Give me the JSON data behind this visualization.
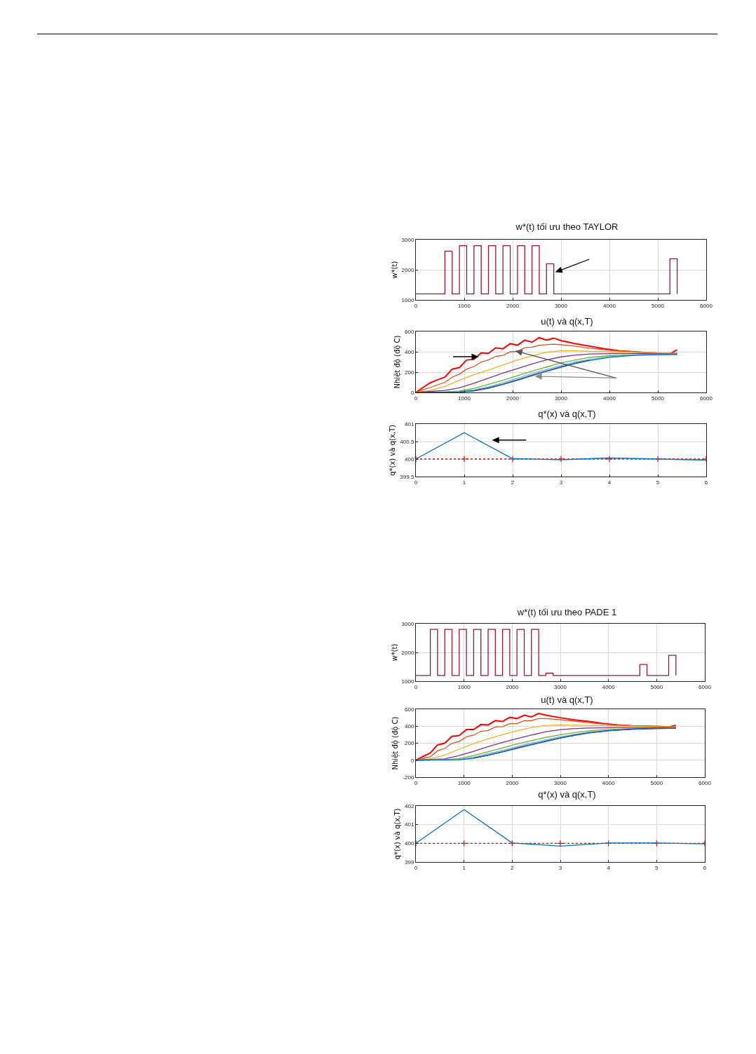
{
  "chart_data": [
    {
      "type": "step",
      "title": "w*(t) tối ưu theo TAYLOR",
      "ylabel": "w*(t)",
      "xlim": [
        0,
        6000
      ],
      "xticks": [
        0,
        1000,
        2000,
        3000,
        4000,
        5000,
        6000
      ],
      "ylim": [
        1000,
        3000
      ],
      "yticks": [
        1000,
        2000,
        3000
      ],
      "grid": true,
      "series": [
        {
          "color": "#a2142f",
          "x": [
            0,
            600,
            750,
            900,
            1050,
            1200,
            1350,
            1500,
            1650,
            1800,
            1950,
            2100,
            2250,
            2400,
            2550,
            2700,
            2850,
            5250,
            5400
          ],
          "values": [
            1200,
            2620,
            1200,
            2800,
            1200,
            2800,
            1200,
            2800,
            1200,
            2800,
            1200,
            2800,
            1200,
            2800,
            1200,
            2200,
            1200,
            2370,
            1200
          ]
        }
      ]
    },
    {
      "type": "line",
      "title": "u(t) và q(x,T)",
      "ylabel": "Nhiệt độ (độ C)",
      "xlim": [
        0,
        6000
      ],
      "xticks": [
        0,
        1000,
        2000,
        3000,
        4000,
        5000,
        6000
      ],
      "ylim": [
        0,
        600
      ],
      "yticks": [
        0,
        200,
        400,
        600
      ],
      "grid": true,
      "series": [
        {
          "color": "#ff0000",
          "x": [
            0,
            150,
            300,
            450,
            600,
            750,
            900,
            1050,
            1200,
            1350,
            1500,
            1650,
            1800,
            1950,
            2100,
            2250,
            2400,
            2550,
            2700,
            2850,
            3000,
            3300,
            3600,
            3900,
            4200,
            4500,
            4800,
            5100,
            5250,
            5400
          ],
          "values": [
            0,
            50,
            95,
            125,
            150,
            230,
            245,
            320,
            325,
            390,
            385,
            440,
            430,
            480,
            465,
            515,
            495,
            540,
            515,
            535,
            510,
            480,
            455,
            430,
            410,
            400,
            390,
            385,
            380,
            420
          ]
        },
        {
          "color": "#d95319",
          "x": [
            0,
            300,
            600,
            750,
            900,
            1050,
            1200,
            1350,
            1500,
            1650,
            1800,
            1950,
            2100,
            2250,
            2400,
            2550,
            2700,
            2850,
            3000,
            3300,
            3600,
            4000,
            4500,
            5000,
            5400
          ],
          "values": [
            0,
            50,
            100,
            150,
            180,
            230,
            255,
            300,
            320,
            355,
            365,
            400,
            405,
            440,
            445,
            465,
            470,
            475,
            470,
            455,
            435,
            415,
            400,
            390,
            385
          ]
        },
        {
          "color": "#edb120",
          "x": [
            0,
            300,
            600,
            900,
            1200,
            1500,
            1800,
            2100,
            2400,
            2700,
            3000,
            3300,
            3600,
            4000,
            4500,
            5000,
            5400
          ],
          "values": [
            0,
            20,
            60,
            120,
            175,
            220,
            270,
            320,
            360,
            395,
            410,
            410,
            405,
            400,
            395,
            390,
            385
          ]
        },
        {
          "color": "#7e2f8e",
          "x": [
            0,
            600,
            900,
            1200,
            1500,
            1800,
            2100,
            2400,
            2700,
            3000,
            3300,
            3600,
            4000,
            4500,
            5000,
            5400
          ],
          "values": [
            0,
            20,
            45,
            90,
            140,
            190,
            235,
            280,
            320,
            350,
            368,
            378,
            382,
            383,
            382,
            380
          ]
        },
        {
          "color": "#77ac30",
          "x": [
            0,
            600,
            900,
            1200,
            1500,
            1800,
            2100,
            2400,
            2700,
            3000,
            3300,
            3600,
            4000,
            4500,
            5000,
            5400
          ],
          "values": [
            0,
            5,
            15,
            40,
            80,
            120,
            165,
            210,
            250,
            290,
            320,
            345,
            362,
            372,
            376,
            378
          ]
        },
        {
          "color": "#4dbeee",
          "x": [
            0,
            900,
            1200,
            1500,
            1800,
            2100,
            2400,
            2700,
            3000,
            3300,
            3600,
            4000,
            4500,
            5000,
            5400
          ],
          "values": [
            0,
            8,
            25,
            55,
            95,
            140,
            185,
            225,
            265,
            300,
            325,
            352,
            368,
            374,
            376
          ]
        },
        {
          "color": "#a2142f",
          "x": [
            0,
            900,
            1200,
            1500,
            1800,
            2100,
            2400,
            2700,
            3000,
            3300,
            3600
          ],
          "values": [
            0,
            5,
            18,
            45,
            82,
            125,
            170,
            212,
            252,
            288,
            318
          ]
        },
        {
          "color": "#0072bd",
          "x": [
            0,
            900,
            1200,
            1500,
            1800,
            2100,
            2400,
            2700,
            3000,
            3300,
            3600,
            4000,
            4500,
            5000,
            5400
          ],
          "values": [
            0,
            4,
            15,
            40,
            78,
            120,
            165,
            208,
            248,
            285,
            315,
            346,
            365,
            372,
            374
          ]
        }
      ]
    },
    {
      "type": "line",
      "title": "q*(x) và q(x,T)",
      "ylabel": "q*(x) và q(x,T)",
      "x": [
        0,
        1,
        2,
        3,
        4,
        5,
        6
      ],
      "xlim": [
        0,
        6
      ],
      "xticks": [
        0,
        1,
        2,
        3,
        4,
        5,
        6
      ],
      "ylim": [
        399.5,
        401
      ],
      "yticks": [
        399.5,
        400,
        400.5,
        401
      ],
      "grid": true,
      "series": [
        {
          "color": "#ff0000",
          "values": [
            400,
            400,
            400,
            400,
            400,
            400,
            400
          ],
          "marker": "cross",
          "line_style": "dotted"
        },
        {
          "color": "#0072bd",
          "values": [
            400,
            400.75,
            400.01,
            399.98,
            400.03,
            400,
            399.97
          ]
        }
      ]
    },
    {
      "type": "step",
      "title": "w*(t) tối ưu theo PADE 1",
      "ylabel": "w*(t)",
      "xlim": [
        0,
        6000
      ],
      "xticks": [
        0,
        1000,
        2000,
        3000,
        4000,
        5000,
        6000
      ],
      "ylim": [
        1000,
        3000
      ],
      "yticks": [
        1000,
        2000,
        3000
      ],
      "grid": true,
      "series": [
        {
          "color": "#a2142f",
          "x": [
            0,
            300,
            450,
            600,
            750,
            900,
            1050,
            1200,
            1350,
            1500,
            1650,
            1800,
            1950,
            2100,
            2250,
            2400,
            2550,
            2700,
            2850,
            4650,
            4800,
            5250,
            5400
          ],
          "values": [
            1200,
            2800,
            1200,
            2800,
            1200,
            2800,
            1200,
            2800,
            1200,
            2800,
            1200,
            2800,
            1200,
            2800,
            1200,
            2800,
            1200,
            1280,
            1200,
            1580,
            1200,
            1900,
            1200
          ]
        }
      ]
    },
    {
      "type": "line",
      "title": "u(t) và q(x,T)",
      "ylabel": "Nhiệt độ (độ C)",
      "xlim": [
        0,
        6000
      ],
      "xticks": [
        0,
        1000,
        2000,
        3000,
        4000,
        5000,
        6000
      ],
      "ylim": [
        -200,
        600
      ],
      "yticks": [
        -200,
        0,
        200,
        400,
        600
      ],
      "grid": true,
      "series": [
        {
          "color": "#ff0000",
          "x": [
            0,
            150,
            300,
            450,
            600,
            750,
            900,
            1050,
            1200,
            1350,
            1500,
            1650,
            1800,
            1950,
            2100,
            2250,
            2400,
            2550,
            2700,
            3000,
            3300,
            3600,
            3900,
            4200,
            4500,
            4800,
            5100,
            5250,
            5400
          ],
          "values": [
            0,
            45,
            85,
            180,
            200,
            280,
            290,
            360,
            360,
            420,
            415,
            465,
            455,
            505,
            490,
            530,
            510,
            550,
            530,
            500,
            475,
            455,
            430,
            415,
            405,
            400,
            395,
            390,
            410
          ]
        },
        {
          "color": "#d95319",
          "x": [
            0,
            300,
            450,
            600,
            750,
            900,
            1050,
            1200,
            1350,
            1500,
            1650,
            1800,
            1950,
            2100,
            2250,
            2400,
            2550,
            2700,
            3000,
            3300,
            3600,
            4000,
            4500,
            5000,
            5400
          ],
          "values": [
            0,
            40,
            110,
            140,
            200,
            220,
            275,
            295,
            340,
            350,
            390,
            395,
            430,
            430,
            465,
            465,
            490,
            490,
            475,
            460,
            440,
            420,
            405,
            398,
            390
          ]
        },
        {
          "color": "#edb120",
          "x": [
            0,
            300,
            600,
            900,
            1200,
            1500,
            1800,
            2100,
            2400,
            2700,
            3000,
            3500,
            4000,
            4500,
            5000,
            5400
          ],
          "values": [
            0,
            15,
            60,
            130,
            195,
            250,
            300,
            345,
            385,
            410,
            415,
            410,
            405,
            400,
            395,
            390
          ]
        },
        {
          "color": "#7e2f8e",
          "x": [
            0,
            600,
            900,
            1200,
            1500,
            1800,
            2100,
            2400,
            2700,
            3000,
            3300,
            3600,
            4000,
            4500,
            5000,
            5400
          ],
          "values": [
            0,
            15,
            55,
            105,
            160,
            210,
            255,
            295,
            335,
            360,
            372,
            378,
            382,
            384,
            384,
            382
          ]
        },
        {
          "color": "#77ac30",
          "x": [
            0,
            600,
            900,
            1200,
            1500,
            1800,
            2100,
            2400,
            2700,
            3000,
            3300,
            3600,
            4000,
            4500,
            5000,
            5400
          ],
          "values": [
            0,
            5,
            20,
            55,
            100,
            145,
            190,
            230,
            268,
            300,
            325,
            345,
            362,
            372,
            377,
            380
          ]
        },
        {
          "color": "#4dbeee",
          "x": [
            0,
            900,
            1200,
            1500,
            1800,
            2100,
            2400,
            2700,
            3000,
            3300,
            3600,
            4000,
            4500
          ],
          "values": [
            0,
            10,
            35,
            75,
            115,
            160,
            200,
            240,
            275,
            305,
            330,
            352,
            367
          ]
        },
        {
          "color": "#a2142f",
          "x": [
            1200,
            1500,
            1800,
            2100,
            2400,
            2700,
            3000,
            3300,
            3600,
            4000,
            4500,
            5000,
            5400
          ],
          "values": [
            25,
            60,
            100,
            145,
            185,
            225,
            262,
            295,
            322,
            348,
            365,
            373,
            376
          ]
        },
        {
          "color": "#0072bd",
          "x": [
            0,
            900,
            1200,
            1500,
            1800,
            2100,
            2400,
            2700,
            3000,
            3300,
            3600,
            4000,
            4500,
            5000,
            5400
          ],
          "values": [
            0,
            5,
            22,
            56,
            96,
            140,
            180,
            220,
            258,
            292,
            320,
            346,
            364,
            372,
            375
          ]
        }
      ]
    },
    {
      "type": "line",
      "title": "q*(x) và q(x,T)",
      "ylabel": "q*(x) và q(x,T)",
      "x": [
        0,
        1,
        2,
        3,
        4,
        5,
        6
      ],
      "xlim": [
        0,
        6
      ],
      "xticks": [
        0,
        1,
        2,
        3,
        4,
        5,
        6
      ],
      "ylim": [
        399,
        402
      ],
      "yticks": [
        399,
        400,
        401,
        402
      ],
      "grid": true,
      "series": [
        {
          "color": "#ff0000",
          "values": [
            400,
            400,
            400,
            400,
            400,
            400,
            400
          ],
          "marker": "cross",
          "line_style": "dotted"
        },
        {
          "color": "#0072bd",
          "values": [
            400,
            401.8,
            400.02,
            399.85,
            400.02,
            400.02,
            399.97
          ]
        }
      ]
    }
  ]
}
